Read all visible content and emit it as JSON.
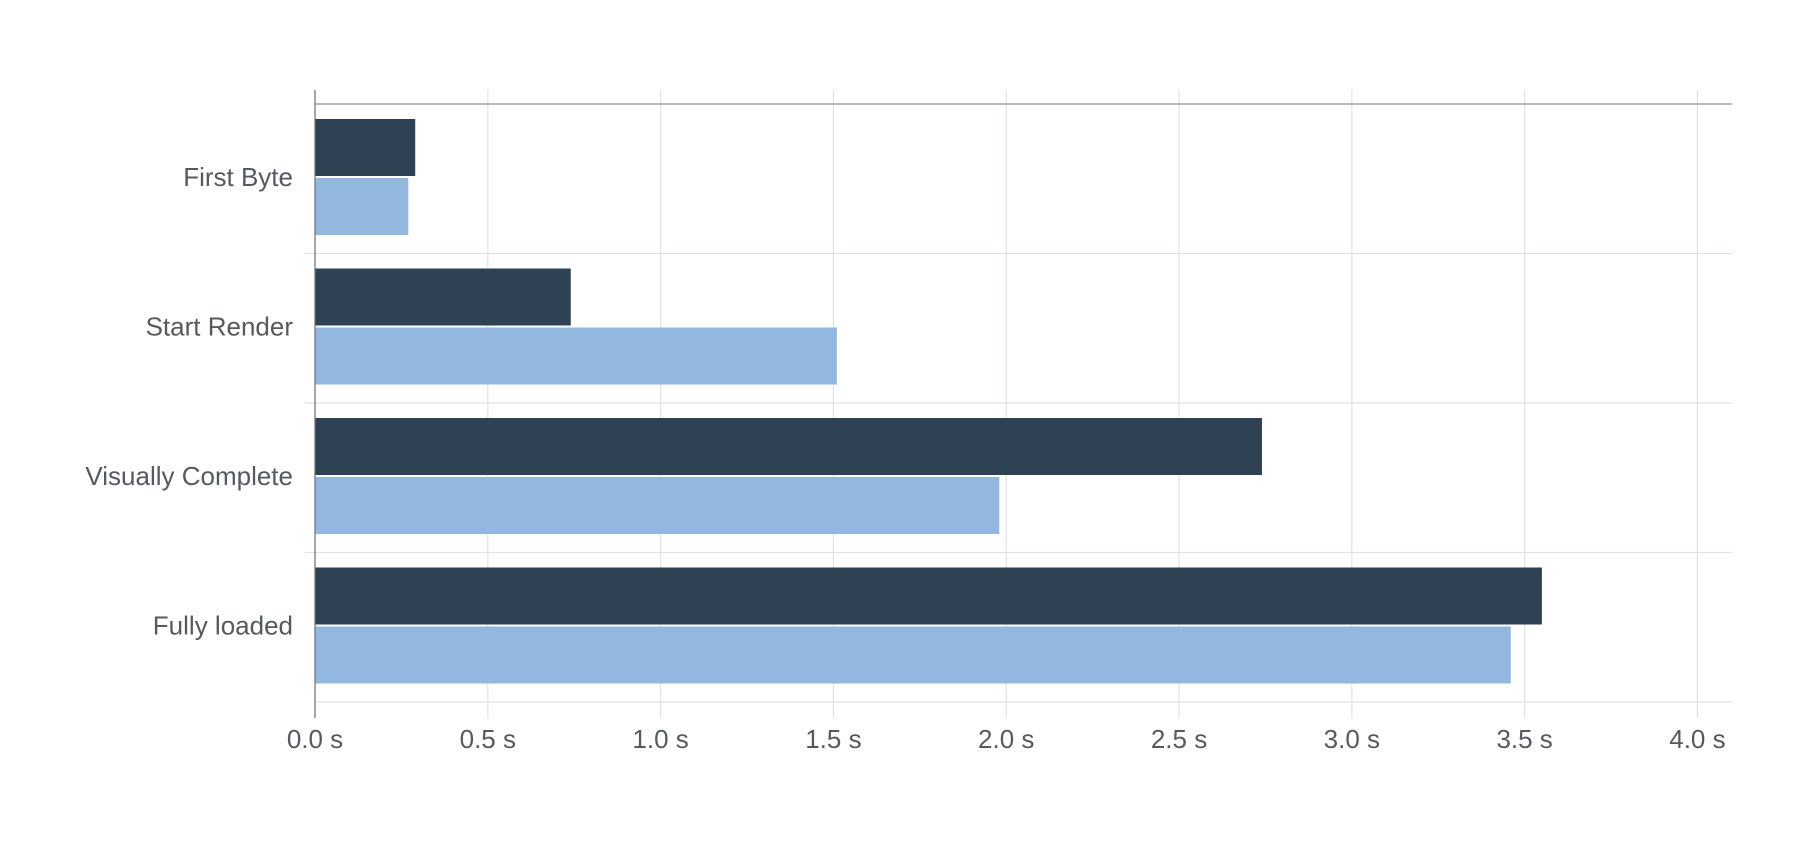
{
  "chart_data": {
    "type": "bar",
    "orientation": "horizontal",
    "categories": [
      "First Byte",
      "Start Render",
      "Visually Complete",
      "Fully loaded"
    ],
    "series": [
      {
        "color": "#2f4254",
        "values": [
          0.29,
          0.74,
          2.74,
          3.55
        ]
      },
      {
        "color": "#93b8df",
        "values": [
          0.27,
          1.51,
          1.98,
          3.46
        ]
      }
    ],
    "x_ticks": [
      "0.0 s",
      "0.5 s",
      "1.0 s",
      "1.5 s",
      "2.0 s",
      "2.5 s",
      "3.0 s",
      "3.5 s",
      "4.0 s"
    ],
    "xlim": [
      0,
      4.1
    ],
    "x_unit": "s",
    "grid": true,
    "legend": "none"
  }
}
